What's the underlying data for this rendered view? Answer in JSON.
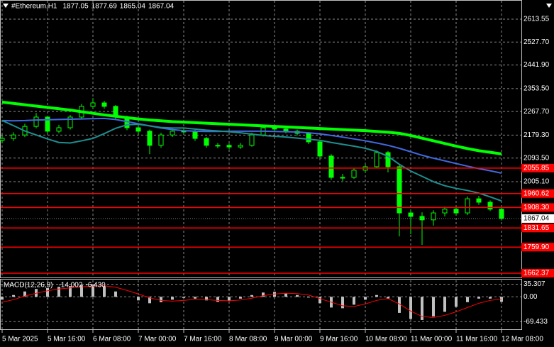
{
  "chart_data": [
    {
      "type": "candlestick",
      "title": "#Ethereum,H1",
      "header_values": [
        1877.05,
        1877.69,
        1865.04,
        1867.04
      ],
      "categories": [
        "5 Mar 2025",
        null,
        null,
        null,
        "5 Mar 16:00",
        null,
        null,
        null,
        "6 Mar 08:00",
        null,
        null,
        null,
        "7 Mar 00:00",
        null,
        null,
        null,
        "7 Mar 16:00",
        null,
        null,
        null,
        "8 Mar 08:00",
        null,
        null,
        null,
        "9 Mar 00:00",
        null,
        null,
        null,
        "9 Mar 16:00",
        null,
        null,
        null,
        "10 Mar 08:00",
        null,
        null,
        null,
        "11 Mar 00:00",
        null,
        null,
        null,
        "11 Mar 16:00",
        null,
        null,
        null,
        "12 Mar 08:00"
      ],
      "open": [
        2160,
        2167,
        2180,
        2212,
        2247,
        2194,
        2207,
        2247,
        2287,
        2300,
        2287,
        2247,
        2207,
        2194,
        2141,
        2180,
        2194,
        2194,
        2167,
        2141,
        2141,
        2135,
        2141,
        2180,
        2207,
        2202,
        2194,
        2186,
        2154,
        2101,
        2021,
        2021,
        2048,
        2061,
        2114,
        2061,
        1888,
        1875,
        1862,
        1888,
        1902,
        1888,
        1941,
        1928,
        1902
      ],
      "high": [
        2178,
        2190,
        2222,
        2262,
        2252,
        2218,
        2255,
        2296,
        2318,
        2308,
        2292,
        2252,
        2215,
        2200,
        2188,
        2203,
        2206,
        2200,
        2172,
        2150,
        2148,
        2150,
        2188,
        2214,
        2215,
        2208,
        2200,
        2190,
        2160,
        2108,
        2034,
        2056,
        2070,
        2122,
        2120,
        2068,
        1900,
        1890,
        1898,
        1912,
        1915,
        1950,
        1952,
        1935,
        1908
      ],
      "low": [
        2150,
        2158,
        2172,
        2205,
        2185,
        2186,
        2200,
        2240,
        2280,
        2278,
        2238,
        2198,
        2180,
        2108,
        2132,
        2172,
        2184,
        2158,
        2132,
        2130,
        2126,
        2128,
        2136,
        2174,
        2194,
        2186,
        2178,
        2146,
        2092,
        2012,
        2008,
        2015,
        2040,
        2055,
        2040,
        1800,
        1808,
        1768,
        1840,
        1875,
        1880,
        1880,
        1918,
        1895,
        1860
      ],
      "close": [
        2167,
        2180,
        2212,
        2247,
        2194,
        2207,
        2247,
        2287,
        2300,
        2287,
        2247,
        2207,
        2194,
        2141,
        2180,
        2194,
        2194,
        2167,
        2141,
        2141,
        2135,
        2141,
        2180,
        2207,
        2202,
        2194,
        2186,
        2154,
        2101,
        2021,
        2021,
        2048,
        2061,
        2114,
        2061,
        1888,
        1875,
        1862,
        1888,
        1902,
        1888,
        1941,
        1928,
        1902,
        1867
      ],
      "color": "#00ff00",
      "series": [
        {
          "color": "#00ff00",
          "values": [
            2303,
            2298,
            2293,
            2288,
            2283,
            2278,
            2273,
            2267,
            2261,
            2255,
            2250,
            2245,
            2240,
            2236,
            2233,
            2230,
            2228,
            2226,
            2224,
            2222,
            2220,
            2218,
            2216,
            2214,
            2212,
            2210,
            2208,
            2206,
            2204,
            2202,
            2200,
            2198,
            2196,
            2193,
            2190,
            2186,
            2178,
            2168,
            2158,
            2148,
            2138,
            2129,
            2121,
            2115,
            2109
          ]
        },
        {
          "color": "#4169e1",
          "values": [
            2234,
            2233,
            2234,
            2236,
            2237,
            2238,
            2239,
            2240,
            2241,
            2242,
            2238,
            2230,
            2222,
            2214,
            2206,
            2200,
            2196,
            2194,
            2193,
            2193,
            2194,
            2194,
            2194,
            2194,
            2193,
            2192,
            2191,
            2188,
            2184,
            2178,
            2172,
            2165,
            2158,
            2150,
            2141,
            2130,
            2117,
            2104,
            2093,
            2083,
            2073,
            2063,
            2054,
            2046,
            2037
          ]
        },
        {
          "color": "#1f8f8f",
          "values": [
            2234,
            2215,
            2195,
            2180,
            2165,
            2152,
            2150,
            2158,
            2167,
            2185,
            2205,
            2218,
            2220,
            2214,
            2208,
            2206,
            2206,
            2202,
            2198,
            2195,
            2192,
            2188,
            2183,
            2178,
            2175,
            2172,
            2168,
            2164,
            2160,
            2152,
            2145,
            2138,
            2130,
            2118,
            2100,
            2070,
            2045,
            2025,
            2005,
            1990,
            1980,
            1972,
            1962,
            1948,
            1933
          ]
        }
      ],
      "levels": [
        2055.85,
        1960.62,
        {
          "value": 1908.3,
          "label": "1908.30"
        },
        1831.65,
        {
          "value": 1759.9,
          "label": "1759.90"
        },
        1662.37
      ],
      "level_color": "#ff0000",
      "last_price": 1867.04,
      "ylim": [
        1643.7,
        2685.3
      ],
      "yticks": [
        2613.55,
        {
          "value": 2527.7,
          "label": "2527.70"
        },
        {
          "value": 2441.9,
          "label": "2441.90"
        },
        {
          "value": 2353.5,
          "label": "2353.50"
        },
        {
          "value": 2267.7,
          "label": "2267.70"
        },
        {
          "value": 2179.3,
          "label": "2179.30"
        },
        {
          "value": 2093.5,
          "label": "2093.50"
        },
        {
          "value": 2005.1,
          "label": "2005.10"
        }
      ],
      "grid": true
    },
    {
      "type": "macd",
      "title": "MACD(12,26,9)",
      "header_values": [
        -14.002,
        {
          "value": -6.43,
          "label": "-6.430"
        }
      ],
      "histogram": {
        "color": "#c0c0c0",
        "values": [
          -8,
          5,
          15,
          22,
          25,
          28,
          30,
          33,
          35,
          30,
          15,
          0,
          -10,
          -18,
          -15,
          -8,
          -3,
          -5,
          -10,
          -14,
          -12,
          -5,
          5,
          12,
          14,
          10,
          5,
          -2,
          -18,
          -30,
          -32,
          -22,
          -8,
          5,
          -5,
          -45,
          -62,
          -65,
          -55,
          -42,
          -28,
          -15,
          -5,
          -5,
          -14.002
        ]
      },
      "signal": {
        "color": "#ff0000",
        "values": [
          -15,
          -8,
          2,
          10,
          17,
          22,
          25,
          28,
          30,
          31,
          27,
          18,
          8,
          -3,
          -10,
          -12,
          -10,
          -7,
          -8,
          -10,
          -11,
          -9,
          -4,
          3,
          8,
          10,
          9,
          5,
          -5,
          -15,
          -25,
          -27,
          -20,
          -10,
          -5,
          -20,
          -40,
          -55,
          -58,
          -52,
          -42,
          -30,
          -18,
          -10,
          -6.43
        ]
      },
      "ylim": [
        -92.9,
        48.3
      ],
      "yticks": [
        35.307,
        {
          "value": 0,
          "label": "0.00"
        },
        -69.433
      ],
      "grid": true
    }
  ]
}
